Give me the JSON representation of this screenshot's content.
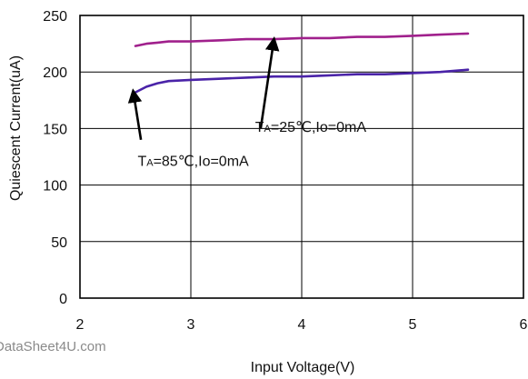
{
  "chart_data": {
    "type": "line",
    "title": "",
    "xlabel": "Input Voltage(V)",
    "ylabel": "Quiescent Current(uA)",
    "xlim": [
      2,
      6
    ],
    "ylim": [
      0,
      250
    ],
    "xticks": [
      "2",
      "3",
      "4",
      "5",
      "6"
    ],
    "yticks": [
      "0",
      "50",
      "100",
      "150",
      "200",
      "250"
    ],
    "grid": true,
    "series": [
      {
        "color": "#a0208c",
        "x": [
          2.5,
          2.6,
          2.7,
          2.8,
          3.0,
          3.25,
          3.5,
          3.75,
          4.0,
          4.25,
          4.5,
          4.75,
          5.0,
          5.25,
          5.5
        ],
        "y": [
          223,
          225,
          226,
          227,
          227,
          228,
          229,
          229,
          230,
          230,
          231,
          231,
          232,
          233,
          234
        ]
      },
      {
        "color": "#4a23a8",
        "x": [
          2.5,
          2.6,
          2.7,
          2.8,
          3.0,
          3.25,
          3.5,
          3.75,
          4.0,
          4.25,
          4.5,
          4.75,
          5.0,
          5.25,
          5.5
        ],
        "y": [
          182,
          187,
          190,
          192,
          193,
          194,
          195,
          196,
          196,
          197,
          198,
          198,
          199,
          200,
          202
        ]
      }
    ],
    "annotations": [
      {
        "prefix": "T",
        "sub": "A",
        "text": "=25℃,Io=0mA",
        "tip": [
          3.75,
          229
        ],
        "tail": [
          3.63,
          150
        ],
        "pos": [
          3.58,
          147
        ]
      },
      {
        "prefix": "T",
        "sub": "A",
        "text": "=85℃,Io=0mA",
        "tip": [
          2.48,
          183
        ],
        "tail": [
          2.55,
          140
        ],
        "pos": [
          2.52,
          117
        ]
      }
    ]
  },
  "watermark": "DataSheet4U.com"
}
